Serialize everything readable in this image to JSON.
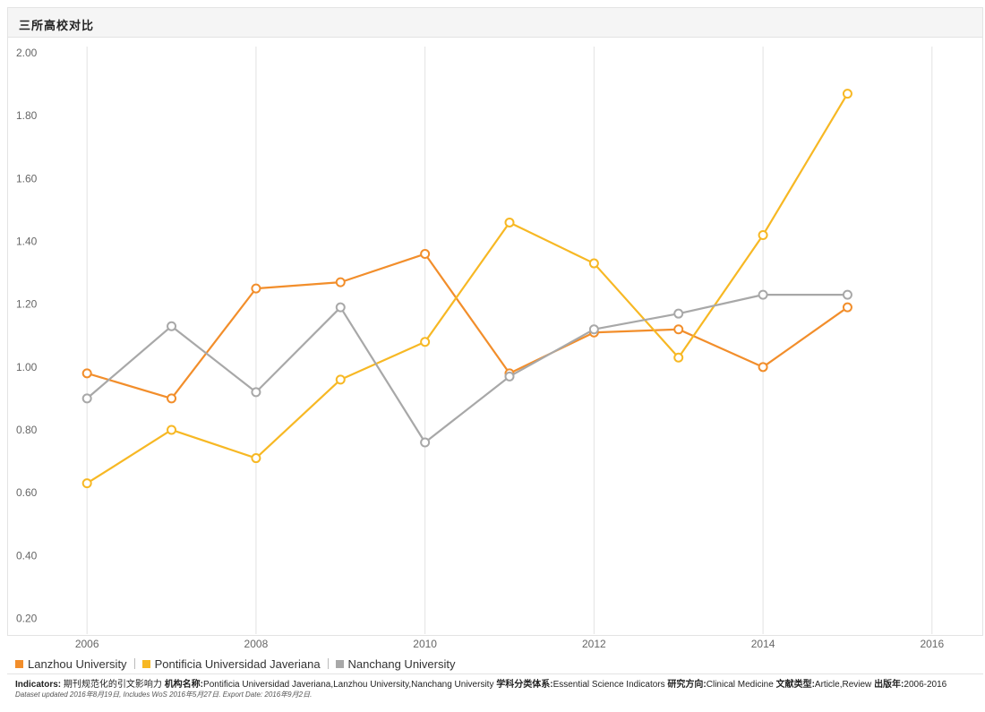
{
  "header": {
    "title": "三所高校对比"
  },
  "chart_data": {
    "type": "line",
    "title": "三所高校对比",
    "xlabel": "",
    "ylabel": "",
    "x_ticks": [
      "2006",
      "2008",
      "2010",
      "2012",
      "2014",
      "2016"
    ],
    "xlim": [
      2005.5,
      2016.5
    ],
    "y_ticks": [
      "0.20",
      "0.40",
      "0.60",
      "0.80",
      "1.00",
      "1.20",
      "1.40",
      "1.60",
      "1.80",
      "2.00"
    ],
    "ylim": [
      0.15,
      2.02
    ],
    "grid": {
      "vertical": true,
      "horizontal": false
    },
    "legend_position": "bottom-left",
    "x": [
      2006,
      2007,
      2008,
      2009,
      2010,
      2011,
      2012,
      2013,
      2014,
      2015
    ],
    "series": [
      {
        "name": "Lanzhou University",
        "color": "#f28e2b",
        "values": [
          0.98,
          0.9,
          1.25,
          1.27,
          1.36,
          0.98,
          1.11,
          1.12,
          1.0,
          1.19
        ]
      },
      {
        "name": "Pontificia Universidad Javeriana",
        "color": "#f7b824",
        "values": [
          0.63,
          0.8,
          0.71,
          0.96,
          1.08,
          1.46,
          1.33,
          1.03,
          1.42,
          1.87
        ]
      },
      {
        "name": "Nanchang University",
        "color": "#a8a8a8",
        "values": [
          0.9,
          1.13,
          0.92,
          1.19,
          0.76,
          0.97,
          1.12,
          1.17,
          1.23,
          1.23
        ]
      }
    ]
  },
  "footer": {
    "indicators_label": "Indicators:",
    "indicators_text": " 期刊规范化的引文影响力 ",
    "institution_label": "机构名称:",
    "institution_text": "Pontificia Universidad Javeriana,Lanzhou University,Nanchang University ",
    "schema_label": "学科分类体系:",
    "schema_text": "Essential Science Indicators ",
    "field_label": "研究方向:",
    "field_text": "Clinical Medicine ",
    "doctype_label": "文献类型:",
    "doctype_text": "Article,Review ",
    "year_label": "出版年:",
    "year_text": "2006-2016",
    "dataset_note": "Dataset updated 2016年8月19日, Includes WoS 2016年5月27日. Export Date: 2016年9月2日."
  }
}
